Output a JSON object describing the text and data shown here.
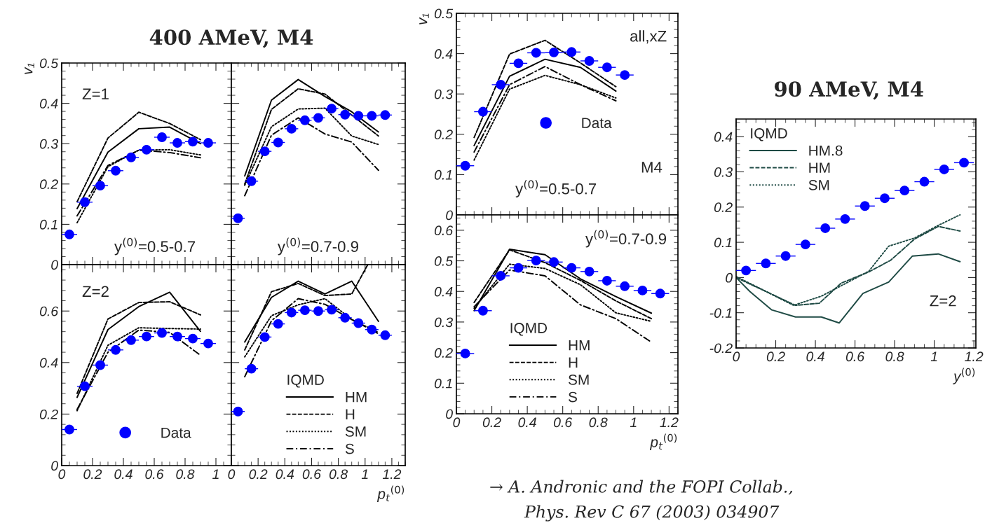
{
  "chart_data": [
    {
      "type": "line",
      "title": "400 AMeV, M4",
      "ylabel": "v₁",
      "annotations": [
        "Z=1",
        "y$^{(0)}$=0.5-0.7"
      ],
      "xlim": [
        0,
        1.1
      ],
      "ylim": [
        0,
        0.5
      ],
      "xticks": [
        0,
        0.2,
        0.4,
        0.6,
        0.8,
        1
      ],
      "yticks": [
        0,
        0.1,
        0.2,
        0.3,
        0.4,
        0.5
      ],
      "tick_labels": "y",
      "grid": false,
      "legend": false,
      "series": [
        {
          "type": "scatter",
          "marker": "circle",
          "color": "#0000ff",
          "x": [
            0.05,
            0.15,
            0.25,
            0.35,
            0.45,
            0.55,
            0.65,
            0.75,
            0.85,
            0.95
          ],
          "values": [
            0.075,
            0.155,
            0.196,
            0.233,
            0.266,
            0.285,
            0.316,
            0.302,
            0.305,
            0.302
          ],
          "xerrors": [
            0.05,
            0.05,
            0.05,
            0.05,
            0.05,
            0.05,
            0.05,
            0.05,
            0.05,
            0.05
          ]
        },
        {
          "type": "line",
          "line_style": "solid",
          "color": "#000000",
          "x": [
            0.1,
            0.3,
            0.5,
            0.7,
            0.9
          ],
          "values": [
            0.139,
            0.279,
            0.337,
            0.341,
            0.3
          ]
        },
        {
          "type": "line",
          "line_style": "dashed",
          "color": "#000000",
          "x": [
            0.1,
            0.3,
            0.5,
            0.7,
            0.9
          ],
          "values": [
            0.156,
            0.314,
            0.378,
            0.35,
            0.31
          ]
        },
        {
          "type": "line",
          "line_style": "dotted",
          "color": "#000000",
          "x": [
            0.1,
            0.3,
            0.5,
            0.7,
            0.9
          ],
          "values": [
            0.104,
            0.243,
            0.284,
            0.285,
            0.272
          ]
        },
        {
          "type": "line",
          "line_style": "dashdot",
          "color": "#000000",
          "x": [
            0.1,
            0.3,
            0.5,
            0.7,
            0.9
          ],
          "values": [
            0.121,
            0.246,
            0.284,
            0.278,
            0.265
          ]
        }
      ]
    },
    {
      "type": "line",
      "annotations": [
        "y$^{(0)}$=0.7-0.9"
      ],
      "xlim": [
        0,
        1.3
      ],
      "ylim": [
        0,
        0.5
      ],
      "xticks": [
        0,
        0.2,
        0.4,
        0.6,
        0.8,
        1,
        1.2
      ],
      "yticks": [
        0,
        0.1,
        0.2,
        0.3,
        0.4,
        0.5
      ],
      "tick_labels": false,
      "grid": false,
      "legend": false,
      "series": [
        {
          "type": "scatter",
          "marker": "circle",
          "color": "#0000ff",
          "x": [
            0.05,
            0.15,
            0.25,
            0.35,
            0.45,
            0.55,
            0.65,
            0.75,
            0.85,
            0.95,
            1.05,
            1.15
          ],
          "values": [
            0.115,
            0.207,
            0.281,
            0.303,
            0.337,
            0.358,
            0.364,
            0.387,
            0.372,
            0.369,
            0.369,
            0.371
          ],
          "xerrors": [
            0.05,
            0.05,
            0.05,
            0.05,
            0.05,
            0.05,
            0.05,
            0.05,
            0.05,
            0.05,
            0.05,
            0.05
          ]
        },
        {
          "type": "line",
          "line_style": "solid",
          "color": "#000000",
          "x": [
            0.1,
            0.3,
            0.5,
            0.7,
            0.9,
            1.1
          ],
          "values": [
            0.22,
            0.408,
            0.459,
            0.417,
            0.379,
            0.329
          ]
        },
        {
          "type": "line",
          "line_style": "dashed",
          "color": "#000000",
          "x": [
            0.1,
            0.3,
            0.5,
            0.7,
            0.9,
            1.1
          ],
          "values": [
            0.2,
            0.385,
            0.436,
            0.423,
            0.371,
            0.319
          ]
        },
        {
          "type": "line",
          "line_style": "dotted",
          "color": "#000000",
          "x": [
            0.1,
            0.3,
            0.5,
            0.7,
            0.9,
            1.1
          ],
          "values": [
            0.197,
            0.342,
            0.386,
            0.388,
            0.319,
            0.298
          ]
        },
        {
          "type": "line",
          "line_style": "dashdot",
          "color": "#000000",
          "x": [
            0.1,
            0.3,
            0.5,
            0.7,
            0.9,
            1.1
          ],
          "values": [
            0.171,
            0.321,
            0.364,
            0.324,
            0.304,
            0.234
          ]
        }
      ]
    },
    {
      "type": "line",
      "annotations": [
        "Z=2"
      ],
      "xlim": [
        0,
        1.1
      ],
      "ylim": [
        0,
        0.78
      ],
      "xticks": [
        0,
        0.2,
        0.4,
        0.6,
        0.8,
        1
      ],
      "yticks": [
        0,
        0.2,
        0.4,
        0.6
      ],
      "grid": false,
      "legend": "bottom",
      "series": [
        {
          "type": "scatter",
          "name": "Data",
          "marker": "circle",
          "color": "#0000ff",
          "x": [
            0.05,
            0.15,
            0.25,
            0.35,
            0.45,
            0.55,
            0.65,
            0.75,
            0.85,
            0.95
          ],
          "values": [
            0.14,
            0.308,
            0.39,
            0.449,
            0.487,
            0.501,
            0.515,
            0.501,
            0.493,
            0.474
          ],
          "xerrors": [
            0.05,
            0.05,
            0.05,
            0.05,
            0.05,
            0.05,
            0.05,
            0.05,
            0.05,
            0.05
          ]
        },
        {
          "type": "line",
          "line_style": "solid",
          "color": "#000000",
          "x": [
            0.1,
            0.3,
            0.5,
            0.7,
            0.9
          ],
          "values": [
            0.265,
            0.528,
            0.617,
            0.673,
            0.521
          ]
        },
        {
          "type": "line",
          "line_style": "dashed",
          "color": "#000000",
          "x": [
            0.1,
            0.3,
            0.5,
            0.7,
            0.9
          ],
          "values": [
            0.28,
            0.569,
            0.633,
            0.636,
            0.585
          ]
        },
        {
          "type": "line",
          "line_style": "dotted",
          "color": "#000000",
          "x": [
            0.1,
            0.3,
            0.5,
            0.7,
            0.9
          ],
          "values": [
            0.213,
            0.467,
            0.535,
            0.532,
            0.53
          ]
        },
        {
          "type": "line",
          "line_style": "dashdot",
          "color": "#000000",
          "x": [
            0.1,
            0.3,
            0.5,
            0.7,
            0.9
          ],
          "values": [
            0.218,
            0.44,
            0.526,
            0.517,
            0.428
          ]
        }
      ]
    },
    {
      "type": "line",
      "xlabel": "p$_{t}$$^{(0)}$",
      "legend_title": "IQMD",
      "xlim": [
        0,
        1.3
      ],
      "ylim": [
        0,
        0.78
      ],
      "xticks": [
        0,
        0.2,
        0.4,
        0.6,
        0.8,
        1,
        1.2
      ],
      "yticks": [
        0,
        0.2,
        0.4,
        0.6
      ],
      "tick_labels": "x",
      "grid": false,
      "legend": "bottom",
      "series": [
        {
          "type": "scatter",
          "marker": "circle",
          "color": "#0000ff",
          "x": [
            0.05,
            0.15,
            0.25,
            0.35,
            0.45,
            0.55,
            0.65,
            0.75,
            0.85,
            0.95,
            1.05,
            1.15
          ],
          "values": [
            0.21,
            0.376,
            0.499,
            0.55,
            0.594,
            0.603,
            0.6,
            0.605,
            0.574,
            0.553,
            0.528,
            0.506
          ],
          "xerrors": [
            0.05,
            0.05,
            0.05,
            0.05,
            0.05,
            0.05,
            0.05,
            0.05,
            0.05,
            0.05,
            0.05,
            0.05
          ]
        },
        {
          "type": "line",
          "name": "HM",
          "line_style": "solid",
          "color": "#000000",
          "x": [
            0.1,
            0.3,
            0.5,
            0.7,
            0.9,
            1.1
          ],
          "values": [
            0.48,
            0.653,
            0.716,
            0.666,
            0.716,
            0.56
          ]
        },
        {
          "type": "line",
          "name": "H",
          "line_style": "dashed",
          "color": "#000000",
          "x": [
            0.1,
            0.3,
            0.5,
            0.7,
            0.9,
            1.02
          ],
          "values": [
            0.449,
            0.675,
            0.707,
            0.66,
            0.666,
            0.78
          ]
        },
        {
          "type": "line",
          "name": "SM",
          "line_style": "dotted",
          "color": "#000000",
          "x": [
            0.1,
            0.3,
            0.5,
            0.7,
            0.9,
            1.1
          ],
          "values": [
            0.422,
            0.582,
            0.624,
            0.648,
            0.567,
            0.517
          ]
        },
        {
          "type": "line",
          "name": "S",
          "line_style": "dashdot",
          "color": "#000000",
          "x": [
            0.1,
            0.3,
            0.5,
            0.7,
            0.9,
            1.1
          ],
          "values": [
            0.345,
            0.562,
            0.648,
            0.626,
            0.567,
            0.512
          ]
        }
      ]
    },
    {
      "type": "line",
      "ylabel": "v₁",
      "annotations": [
        "all,xZ",
        "M4",
        "y$^{(0)}$=0.5-0.7"
      ],
      "xlim": [
        0,
        1.25
      ],
      "ylim": [
        0,
        0.5
      ],
      "xticks": [
        0,
        0.2,
        0.4,
        0.6,
        0.8,
        1,
        1.2
      ],
      "yticks": [
        0,
        0.1,
        0.2,
        0.3,
        0.4,
        0.5
      ],
      "tick_labels": "y",
      "grid": false,
      "legend": "center",
      "series": [
        {
          "type": "scatter",
          "name": "Data",
          "marker": "circle",
          "color": "#0000ff",
          "x": [
            0.05,
            0.15,
            0.25,
            0.35,
            0.45,
            0.55,
            0.65,
            0.75,
            0.85,
            0.95
          ],
          "values": [
            0.122,
            0.256,
            0.323,
            0.376,
            0.402,
            0.403,
            0.404,
            0.382,
            0.366,
            0.347
          ],
          "xerrors": [
            0.05,
            0.05,
            0.05,
            0.05,
            0.05,
            0.05,
            0.05,
            0.05,
            0.05,
            0.05
          ]
        },
        {
          "type": "line",
          "line_style": "solid",
          "color": "#000000",
          "x": [
            0.1,
            0.3,
            0.5,
            0.7,
            0.9
          ],
          "values": [
            0.172,
            0.344,
            0.386,
            0.366,
            0.307
          ]
        },
        {
          "type": "line",
          "line_style": "dashed",
          "color": "#000000",
          "x": [
            0.1,
            0.3,
            0.5,
            0.7,
            0.9
          ],
          "values": [
            0.192,
            0.399,
            0.433,
            0.377,
            0.318
          ]
        },
        {
          "type": "line",
          "line_style": "dotted",
          "color": "#000000",
          "x": [
            0.1,
            0.3,
            0.5,
            0.7,
            0.9
          ],
          "values": [
            0.136,
            0.312,
            0.346,
            0.323,
            0.29
          ]
        },
        {
          "type": "line",
          "line_style": "dashdot",
          "color": "#000000",
          "x": [
            0.1,
            0.3,
            0.5,
            0.7,
            0.9
          ],
          "values": [
            0.156,
            0.323,
            0.368,
            0.323,
            0.283
          ]
        }
      ]
    },
    {
      "type": "line",
      "xlabel": "p$_{t}$$^{(0)}$",
      "legend_title": "IQMD",
      "annotations": [
        "y$^{(0)}$=0.7-0.9"
      ],
      "xlim": [
        0,
        1.25
      ],
      "ylim": [
        0,
        0.65
      ],
      "xticks": [
        0,
        0.2,
        0.4,
        0.6,
        0.8,
        1,
        1.2
      ],
      "yticks": [
        0,
        0.1,
        0.2,
        0.3,
        0.4,
        0.5,
        0.6
      ],
      "grid": false,
      "legend": "bottom left",
      "series": [
        {
          "type": "scatter",
          "marker": "circle",
          "color": "#0000ff",
          "x": [
            0.05,
            0.15,
            0.25,
            0.35,
            0.45,
            0.55,
            0.65,
            0.75,
            0.85,
            0.95,
            1.05,
            1.15
          ],
          "values": [
            0.197,
            0.337,
            0.451,
            0.477,
            0.501,
            0.496,
            0.477,
            0.465,
            0.435,
            0.417,
            0.403,
            0.393
          ],
          "xerrors": [
            0.05,
            0.05,
            0.05,
            0.05,
            0.05,
            0.05,
            0.05,
            0.05,
            0.05,
            0.05,
            0.05,
            0.05
          ]
        },
        {
          "type": "line",
          "name": "HM",
          "line_style": "solid",
          "color": "#000000",
          "x": [
            0.1,
            0.3,
            0.5,
            0.7,
            0.9,
            1.1
          ],
          "values": [
            0.337,
            0.538,
            0.52,
            0.441,
            0.383,
            0.329
          ]
        },
        {
          "type": "line",
          "name": "H",
          "line_style": "dashed",
          "color": "#000000",
          "x": [
            0.1,
            0.3,
            0.5,
            0.7,
            0.9,
            1.1
          ],
          "values": [
            0.364,
            0.536,
            0.494,
            0.436,
            0.369,
            0.311
          ]
        },
        {
          "type": "line",
          "name": "SM",
          "line_style": "dotted",
          "color": "#000000",
          "x": [
            0.1,
            0.3,
            0.5,
            0.7,
            0.9,
            1.1
          ],
          "values": [
            0.345,
            0.489,
            0.475,
            0.422,
            0.33,
            0.302
          ]
        },
        {
          "type": "line",
          "name": "S",
          "line_style": "dashdot",
          "color": "#000000",
          "x": [
            0.1,
            0.3,
            0.5,
            0.7,
            0.9,
            1.1
          ],
          "values": [
            0.35,
            0.47,
            0.451,
            0.356,
            0.311,
            0.234
          ]
        }
      ]
    },
    {
      "type": "line",
      "title": "90 AMeV, M4",
      "xlabel": "y$^{(0)}$",
      "legend_title": "IQMD",
      "annotations": [
        "Z=2",
        "→ A. Andronic and the FOPI Collab.,",
        "Phys. Rev C 67 (2003) 034907"
      ],
      "xlim": [
        0,
        1.21
      ],
      "ylim": [
        -0.2,
        0.45
      ],
      "xticks": [
        0,
        0.2,
        0.4,
        0.6,
        0.8,
        1,
        1.2
      ],
      "yticks": [
        -0.2,
        -0.1,
        0,
        0.1,
        0.2,
        0.3,
        0.4
      ],
      "grid": false,
      "legend": "top left",
      "series": [
        {
          "type": "scatter",
          "marker": "circle",
          "color": "#0000ff",
          "x": [
            0.05,
            0.15,
            0.25,
            0.35,
            0.45,
            0.55,
            0.65,
            0.75,
            0.85,
            0.95,
            1.05,
            1.15
          ],
          "values": [
            0.02,
            0.04,
            0.061,
            0.094,
            0.14,
            0.166,
            0.203,
            0.225,
            0.247,
            0.272,
            0.307,
            0.326
          ],
          "xerrors": [
            0.05,
            0.05,
            0.05,
            0.05,
            0.05,
            0.05,
            0.05,
            0.05,
            0.05,
            0.05,
            0.05,
            0.05
          ]
        },
        {
          "type": "line",
          "name": "HM.8",
          "line_style": "solid",
          "color": "#1e4a44",
          "x": [
            0,
            0.07,
            0.18,
            0.3,
            0.43,
            0.52,
            0.64,
            0.77,
            0.89,
            1.02,
            1.13
          ],
          "values": [
            0,
            -0.04,
            -0.092,
            -0.112,
            -0.112,
            -0.129,
            -0.045,
            -0.013,
            0.061,
            0.067,
            0.045
          ]
        },
        {
          "type": "line",
          "name": "HM",
          "line_style": "dashed",
          "color": "#1e4a44",
          "x": [
            0,
            0.3,
            0.42,
            0.53,
            0.67,
            0.78,
            0.9,
            1.02,
            1.13
          ],
          "values": [
            0,
            -0.079,
            -0.073,
            -0.016,
            0.016,
            0.049,
            0.109,
            0.145,
            0.132
          ]
        },
        {
          "type": "line",
          "name": "SM",
          "line_style": "dotted",
          "color": "#1e4a44",
          "x": [
            0,
            0.29,
            0.43,
            0.67,
            0.77,
            0.9,
            1.02,
            1.13
          ],
          "values": [
            0.003,
            -0.079,
            -0.053,
            0.018,
            0.089,
            0.112,
            0.148,
            0.178
          ]
        }
      ]
    }
  ]
}
